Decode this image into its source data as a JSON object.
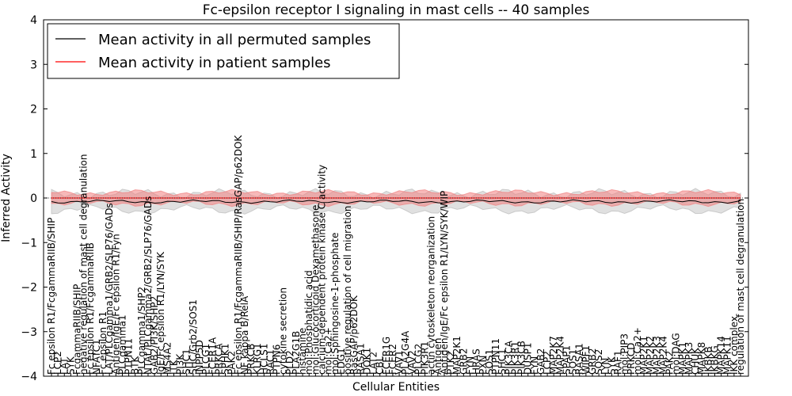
{
  "chart_data": {
    "type": "line",
    "title": "Fc-epsilon receptor I signaling in mast cells -- 40 samples",
    "xlabel": "Cellular Entities",
    "ylabel": "Inferred Activity",
    "ylim": [
      -4,
      4
    ],
    "yticks": [
      -4,
      -3,
      -2,
      -1,
      0,
      1,
      2,
      3,
      4
    ],
    "ytick_labels": [
      "−4",
      "−3",
      "−2",
      "−1",
      "0",
      "1",
      "2",
      "3",
      "4"
    ],
    "grid": false,
    "legend_position": "top-left",
    "series": [
      {
        "name": "Mean activity in all permuted samples",
        "color": "#000000",
        "band_color": "#bbbbbb",
        "mean": -0.08,
        "band": 0.18
      },
      {
        "name": "Mean activity in patient samples",
        "color": "#ff0000",
        "band_color": "#f08080",
        "mean": 0.0,
        "band": 0.12
      }
    ],
    "categories": [
      "Fc epsilon R1/FcgammaRIIB/SHIP",
      "LCP2",
      "LAT",
      "SYK",
      "FcgammaRIIB/SHIP",
      "negative regulation of mast cell degranulation",
      "Fc epsilon R1/FcgammaRIIB",
      "NFATC1",
      "Fc epsilon R1",
      "LAT/PLCgamma1/GRB2/SLP76/GADs",
      "Antigen/IgE/Fc epsilon R1/Fyn",
      "PLCgamma1",
      "PTPN11",
      "BTK",
      "PLCgamma1/SHP2",
      "NTAL/PLCgamma2/GRB2/SLP76/GADs",
      "GAB2/PI3K/SHP2",
      "IgE/Fc epsilon R1/LYN/SYK",
      "MS4A2",
      "ITK",
      "PI3K",
      "SHC1",
      "SHC/Grb2/SOS1",
      "INPP5D",
      "PLCG1",
      "FCER1A",
      "PRKCA",
      "SPHK1",
      "PAK2",
      "Fc epsilon R1/FcgammaRIIB/SHIP/RasGAP/p62DOK",
      "NF kappa B/RelA",
      "PRKCB",
      "KLRG1",
      "HCLS1",
      "RAC1",
      "PTPN6",
      "cytokine secretion",
      "PLD2",
      "PLA2G1B",
      "histamine",
      "mol:Phosphatidic acid",
      "mol:Glucocorticoid Dexamethasone",
      "calcium-dependent protein kinase C activity",
      "mol:Ca2+",
      "mol:Sphingosine-1-phosphate",
      "EDG1",
      "positive regulation of cell migration",
      "RasGAP/p62DOK",
      "RASA1",
      "DOK1",
      "LAT2",
      "CBL",
      "FCER1G",
      "FCER2",
      "VAV1",
      "PLA2G4A",
      "VAV2",
      "PLCG2",
      "PIK3R1",
      "actin cytoskeleton reorganization",
      "Antigen",
      "Antigen/IgE/Fc epsilon R1/LYN/SYK/WIP",
      "PTK2",
      "MAP2K1",
      "GRB2",
      "FYN",
      "HRAS",
      "PXN",
      "SOS1",
      "PTPN11",
      "SHC1",
      "PIK3CA",
      "PIK3R1",
      "PIK3CB",
      "DUSP1",
      "FYN",
      "GAB2",
      "LCP2",
      "MAP2K7",
      "MAP2K4",
      "SPAP1",
      "SOS1",
      "RASA1",
      "WIPF1",
      "GRB2",
      "SOS2",
      "LYN",
      "SYK",
      "RAF1",
      "mol:PIP3",
      "PRKCD",
      "mol:Ca2+",
      "MAP2K1",
      "MAP2K2",
      "MAP2K3",
      "MAP2K4",
      "PAK2",
      "mol:DAG",
      "MAPK1",
      "MAPK3",
      "CHUK",
      "MAPK8",
      "IKBKB",
      "IKBKG",
      "MAPK14",
      "MAPK11",
      "IKK complex",
      "regulation of mast cell degranulation"
    ]
  }
}
